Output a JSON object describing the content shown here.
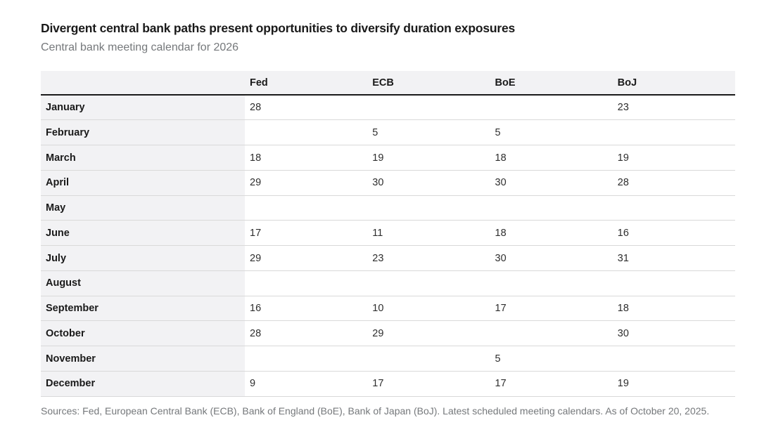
{
  "page": {
    "title": "Divergent central bank paths present opportunities to diversify duration exposures",
    "subtitle": "Central bank meeting calendar for 2026",
    "source_note": "Sources: Fed, European Central Bank (ECB), Bank of England (BoE), Bank of Japan (BoJ). Latest scheduled meeting calendars. As of October 20, 2025."
  },
  "colors": {
    "header_bg": "#f2f2f4",
    "month_col_bg": "#f2f2f4",
    "header_rule": "#1a1a1a",
    "row_divider": "#d9d9d9",
    "title_text": "#1a1a1a",
    "muted_text": "#75787b",
    "cell_text": "#2e2e2e",
    "page_bg": "#ffffff"
  },
  "chart_data": {
    "type": "table",
    "title": "Divergent central bank paths present opportunities to diversify duration exposures",
    "subtitle": "Central bank meeting calendar for 2026",
    "month_column_header": "",
    "columns": [
      "Fed",
      "ECB",
      "BoE",
      "BoJ"
    ],
    "rows": [
      {
        "month": "January",
        "values": [
          "28",
          "",
          "",
          "23"
        ]
      },
      {
        "month": "February",
        "values": [
          "",
          "5",
          "5",
          ""
        ]
      },
      {
        "month": "March",
        "values": [
          "18",
          "19",
          "18",
          "19"
        ]
      },
      {
        "month": "April",
        "values": [
          "29",
          "30",
          "30",
          "28"
        ]
      },
      {
        "month": "May",
        "values": [
          "",
          "",
          "",
          ""
        ]
      },
      {
        "month": "June",
        "values": [
          "17",
          "11",
          "18",
          "16"
        ]
      },
      {
        "month": "July",
        "values": [
          "29",
          "23",
          "30",
          "31"
        ]
      },
      {
        "month": "August",
        "values": [
          "",
          "",
          "",
          ""
        ]
      },
      {
        "month": "September",
        "values": [
          "16",
          "10",
          "17",
          "18"
        ]
      },
      {
        "month": "October",
        "values": [
          "28",
          "29",
          "",
          "30"
        ]
      },
      {
        "month": "November",
        "values": [
          "",
          "",
          "5",
          ""
        ]
      },
      {
        "month": "December",
        "values": [
          "9",
          "17",
          "17",
          "19"
        ]
      }
    ],
    "layout": {
      "grid": "horizontal row dividers only",
      "month_column_shaded": true,
      "header_row_shaded": true,
      "legend": "none"
    },
    "source": "Sources: Fed, European Central Bank (ECB), Bank of England (BoE), Bank of Japan (BoJ). Latest scheduled meeting calendars. As of October 20, 2025."
  }
}
